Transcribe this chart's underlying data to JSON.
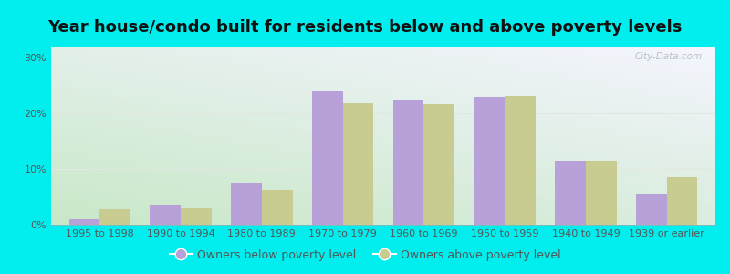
{
  "title": "Year house/condo built for residents below and above poverty levels",
  "categories": [
    "1995 to 1998",
    "1990 to 1994",
    "1980 to 1989",
    "1970 to 1979",
    "1960 to 1969",
    "1950 to 1959",
    "1940 to 1949",
    "1939 or earlier"
  ],
  "below_poverty": [
    1.0,
    3.5,
    7.5,
    24.0,
    22.5,
    23.0,
    11.5,
    5.5
  ],
  "above_poverty": [
    2.8,
    3.0,
    6.3,
    21.8,
    21.6,
    23.2,
    11.5,
    8.5
  ],
  "below_color": "#b8a0d8",
  "above_color": "#c8cc90",
  "background_color": "#00eeee",
  "plot_bg_colors": [
    "#c8e8c8",
    "#f0f0ff"
  ],
  "ylabel_ticks": [
    "0%",
    "10%",
    "20%",
    "30%"
  ],
  "yticks": [
    0,
    10,
    20,
    30
  ],
  "ylim": [
    0,
    32
  ],
  "bar_width": 0.38,
  "legend_below": "Owners below poverty level",
  "legend_above": "Owners above poverty level",
  "title_fontsize": 13,
  "tick_fontsize": 8,
  "tick_color": "#555555",
  "legend_fontsize": 9,
  "watermark": "City-Data.com",
  "grid_color": "#e0e8e0",
  "spine_color": "#aaaaaa"
}
